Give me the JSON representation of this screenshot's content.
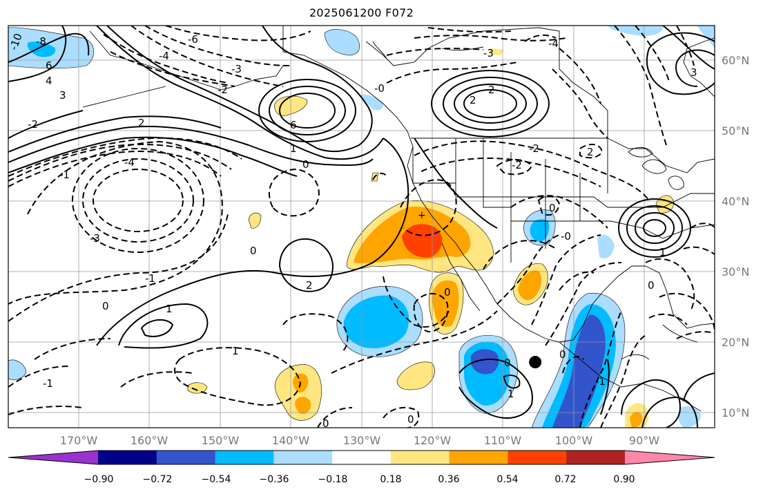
{
  "title": "2025061200 F072",
  "map": {
    "type": "forecast anomaly map",
    "projection": "plate carree",
    "lon_range": [
      -180,
      -80
    ],
    "lat_range": [
      8,
      65
    ],
    "grid": true,
    "lon_labels": [
      "170°W",
      "160°W",
      "150°W",
      "140°W",
      "130°W",
      "120°W",
      "110°W",
      "100°W",
      "90°W"
    ],
    "lat_labels": [
      "60°N",
      "50°N",
      "40°N",
      "30°N",
      "20°N",
      "10°N"
    ]
  },
  "colorbar": {
    "orientation": "horizontal",
    "extend": "both",
    "ticks": [
      "−0.90",
      "−0.72",
      "−0.54",
      "−0.36",
      "−0.18",
      "0.18",
      "0.36",
      "0.54",
      "0.72",
      "0.90"
    ],
    "colors": [
      "#9933cc",
      "#000088",
      "#3355cc",
      "#00bbff",
      "#aaddff",
      "#ffffff",
      "#ffe680",
      "#ffa500",
      "#ff4000",
      "#b22222",
      "#ff88aa"
    ]
  },
  "contour_labels": [
    "-6",
    "-10",
    "-8",
    "6",
    "4",
    "3",
    "-4",
    "-3",
    "-2",
    "2",
    "-1",
    "1",
    "0",
    "-0",
    "6",
    "-2",
    "2",
    "2",
    "-4",
    "-2",
    "-3",
    "-1",
    "0",
    "2",
    "1",
    "0",
    "0",
    "-1",
    "1",
    "1",
    "0",
    "0",
    "-1",
    "0",
    "0",
    "0",
    "-0",
    "0",
    "1",
    "-2",
    "2",
    "-4",
    "3",
    "-3"
  ],
  "markers": [
    {
      "lon": -105.4,
      "lat": 17.3,
      "symbol": "filled-circle"
    }
  ]
}
